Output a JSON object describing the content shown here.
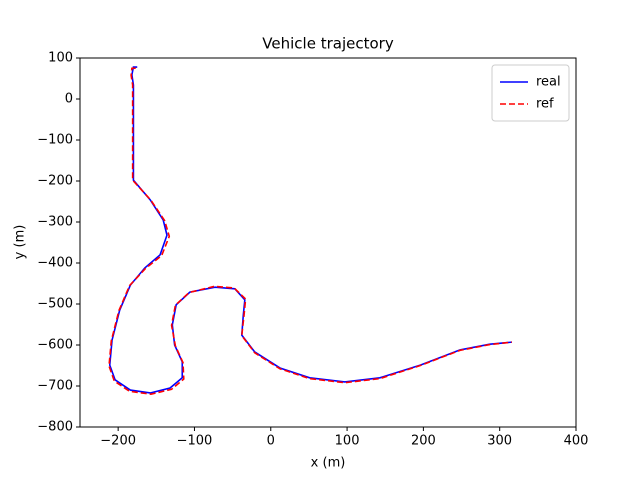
{
  "chart_data": {
    "type": "line",
    "title": "Vehicle trajectory",
    "x_label": "x (m)",
    "y_label": "y (m)",
    "xlim": [
      -250,
      400
    ],
    "ylim": [
      -800,
      100
    ],
    "xticks": [
      {
        "value": -200,
        "label": "−200"
      },
      {
        "value": -100,
        "label": "−100"
      },
      0,
      100,
      200,
      300,
      400
    ],
    "yticks": [
      {
        "value": -800,
        "label": "−800"
      },
      {
        "value": -700,
        "label": "−700"
      },
      {
        "value": -600,
        "label": "−600"
      },
      {
        "value": -500,
        "label": "−500"
      },
      {
        "value": -400,
        "label": "−400"
      },
      {
        "value": -300,
        "label": "−300"
      },
      {
        "value": -200,
        "label": "−200"
      },
      {
        "value": -100,
        "label": "−100"
      },
      0,
      100
    ],
    "legend": "upper right",
    "series": [
      {
        "name": "real",
        "color": "#0000ff",
        "dash": false,
        "x": [
          -175,
          -180,
          -182,
          -180,
          -180,
          -180,
          -158,
          -141,
          -136,
          -145,
          -165,
          -184,
          -198,
          -208,
          -211,
          -204,
          -184,
          -158,
          -132,
          -116,
          -116,
          -126,
          -129,
          -124,
          -106,
          -73,
          -47,
          -34,
          -36,
          -38,
          -21,
          12,
          51,
          97,
          143,
          196,
          248,
          287,
          316
        ],
        "values": [
          78,
          78,
          59,
          34,
          -2,
          -198,
          -246,
          -295,
          -332,
          -380,
          -412,
          -454,
          -515,
          -588,
          -649,
          -685,
          -710,
          -717,
          -705,
          -680,
          -641,
          -600,
          -551,
          -502,
          -471,
          -459,
          -463,
          -490,
          -527,
          -576,
          -617,
          -656,
          -680,
          -690,
          -680,
          -649,
          -612,
          -598,
          -593
        ]
      },
      {
        "name": "ref",
        "color": "#ff0000",
        "dash": true,
        "x": [
          -177,
          -182,
          -183,
          -181,
          -181,
          -181,
          -157,
          -139,
          -133,
          -143,
          -164,
          -185,
          -199,
          -209,
          -212,
          -205,
          -185,
          -157,
          -130,
          -114,
          -115,
          -125,
          -130,
          -125,
          -107,
          -74,
          -48,
          -33,
          -35,
          -38,
          -21,
          12,
          51,
          97,
          143,
          196,
          248,
          287,
          316
        ],
        "values": [
          75,
          75,
          58,
          34,
          -2,
          -198,
          -247,
          -297,
          -335,
          -382,
          -413,
          -455,
          -516,
          -590,
          -651,
          -688,
          -713,
          -720,
          -708,
          -683,
          -643,
          -602,
          -552,
          -503,
          -472,
          -457,
          -461,
          -488,
          -527,
          -577,
          -619,
          -658,
          -682,
          -692,
          -682,
          -650,
          -613,
          -599,
          -593
        ]
      }
    ]
  }
}
